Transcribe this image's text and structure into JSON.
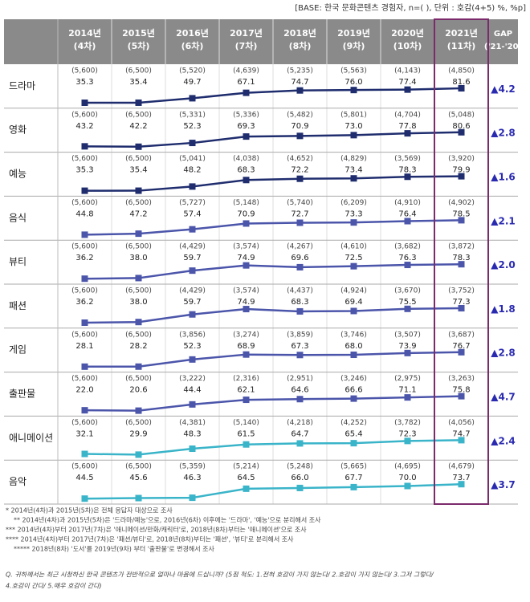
{
  "header": {
    "base": "[BASE: 한국 문화콘텐츠 경험자, n=( ), 단위 : 호감(4+5) %, %p]"
  },
  "table": {
    "columns": [
      [
        "2014년",
        "(4차)"
      ],
      [
        "2015년",
        "(5차)"
      ],
      [
        "2016년",
        "(6차)"
      ],
      [
        "2017년",
        "(7차)"
      ],
      [
        "2018년",
        "(8차)"
      ],
      [
        "2019년",
        "(9차)"
      ],
      [
        "2020년",
        "(10차)"
      ],
      [
        "2021년",
        "(11차)"
      ]
    ],
    "gap_header": [
      "GAP",
      "('21-'20)"
    ],
    "rows": [
      {
        "name": "드라마",
        "color": "#1f2d6e",
        "n": [
          "(5,600)",
          "(6,500)",
          "(5,520)",
          "(4,639)",
          "(5,235)",
          "(5,563)",
          "(4,143)",
          "(4,850)"
        ],
        "values": [
          "35.3",
          "35.4",
          "49.7",
          "67.1",
          "74.7",
          "76.0",
          "77.4",
          "81.6"
        ],
        "gap": "▲4.2"
      },
      {
        "name": "영화",
        "color": "#1f2d6e",
        "n": [
          "(5,600)",
          "(6,500)",
          "(5,331)",
          "(5,336)",
          "(5,482)",
          "(5,801)",
          "(4,704)",
          "(5,048)"
        ],
        "values": [
          "43.2",
          "42.2",
          "52.3",
          "69.3",
          "70.9",
          "73.0",
          "77.8",
          "80.6"
        ],
        "gap": "▲2.8"
      },
      {
        "name": "예능",
        "color": "#1f2d6e",
        "n": [
          "(5,600)",
          "(6,500)",
          "(5,041)",
          "(4,038)",
          "(4,652)",
          "(4,829)",
          "(3,569)",
          "(3,920)"
        ],
        "values": [
          "35.3",
          "35.4",
          "48.2",
          "68.3",
          "72.2",
          "73.4",
          "78.3",
          "79.9"
        ],
        "gap": "▲1.6"
      },
      {
        "name": "음식",
        "color": "#4b55aa",
        "n": [
          "(5,600)",
          "(6,500)",
          "(5,727)",
          "(5,148)",
          "(5,740)",
          "(6,209)",
          "(4,910)",
          "(4,902)"
        ],
        "values": [
          "44.8",
          "47.2",
          "57.4",
          "70.9",
          "72.7",
          "73.3",
          "76.4",
          "78.5"
        ],
        "gap": "▲2.1"
      },
      {
        "name": "뷰티",
        "color": "#4b55aa",
        "n": [
          "(5,600)",
          "(6,500)",
          "(4,429)",
          "(3,574)",
          "(4,267)",
          "(4,610)",
          "(3,682)",
          "(3,872)"
        ],
        "values": [
          "36.2",
          "38.0",
          "59.7",
          "74.9",
          "69.6",
          "72.5",
          "76.3",
          "78.3"
        ],
        "gap": "▲2.0"
      },
      {
        "name": "패션",
        "color": "#4b55aa",
        "n": [
          "(5,600)",
          "(6,500)",
          "(4,429)",
          "(3,574)",
          "(4,437)",
          "(4,924)",
          "(3,670)",
          "(3,752)"
        ],
        "values": [
          "36.2",
          "38.0",
          "59.7",
          "74.9",
          "68.3",
          "69.4",
          "75.5",
          "77.3"
        ],
        "gap": "▲1.8"
      },
      {
        "name": "게임",
        "color": "#4b55aa",
        "n": [
          "(5,600)",
          "(6,500)",
          "(3,856)",
          "(3,274)",
          "(3,859)",
          "(3,746)",
          "(3,507)",
          "(3,687)"
        ],
        "values": [
          "28.1",
          "28.2",
          "52.3",
          "68.9",
          "67.3",
          "68.0",
          "73.9",
          "76.7"
        ],
        "gap": "▲2.8"
      },
      {
        "name": "출판물",
        "color": "#4b55aa",
        "n": [
          "(5,600)",
          "(6,500)",
          "(3,222)",
          "(2,316)",
          "(2,951)",
          "(3,246)",
          "(2,975)",
          "(3,263)"
        ],
        "values": [
          "22.0",
          "20.6",
          "44.4",
          "62.1",
          "64.6",
          "66.6",
          "71.1",
          "75.8"
        ],
        "gap": "▲4.7"
      },
      {
        "name": "애니메이션",
        "color": "#3ab4c9",
        "n": [
          "(5,600)",
          "(6,500)",
          "(4,381)",
          "(5,140)",
          "(4,218)",
          "(4,252)",
          "(3,782)",
          "(4,056)"
        ],
        "values": [
          "32.1",
          "29.9",
          "48.3",
          "61.5",
          "64.7",
          "65.4",
          "72.3",
          "74.7"
        ],
        "gap": "▲2.4"
      },
      {
        "name": "음악",
        "color": "#3ab4c9",
        "n": [
          "(5,600)",
          "(6,500)",
          "(5,359)",
          "(5,214)",
          "(5,248)",
          "(5,665)",
          "(4,695)",
          "(4,679)"
        ],
        "values": [
          "44.5",
          "45.6",
          "46.3",
          "64.5",
          "66.0",
          "67.7",
          "70.0",
          "73.7"
        ],
        "gap": "▲3.7"
      }
    ]
  },
  "footnotes": [
    "* 2014년(4차)과 2015년(5차)은 전체 응답자 대상으로 조사",
    "** 2014년(4차)과 2015년(5차)은 '드라마/예능'으로, 2016년(6차) 이후에는 '드라마', '예능'으로 분리해서 조사",
    "*** 2014년(4차)부터 2017년(7차)은 '애니메이션/만화/캐릭터'로, 2018년(8차)부터는 '애니메이션'으로 조사",
    "**** 2014년(4차)부터 2017년(7차)은 '패션/뷰티'로, 2018년(8차)부터는 '패션', '뷰티'로 분리해서 조사",
    "***** 2018년(8차) '도서'를 2019년(9차) 부터 '출판물'로 변경해서 조사"
  ],
  "question": [
    "Q. 귀하께서는 최근 시청하신 한국 콘텐츠가 전반적으로 얼마나 마음에 드십니까? (5점 척도: 1.전혀 호감이 가지 않는다/ 2.호감이 가지 않는다/ 3.그저 그렇다/",
    "4.호감이 간다/ 5.매우 호감이 간다)"
  ]
}
